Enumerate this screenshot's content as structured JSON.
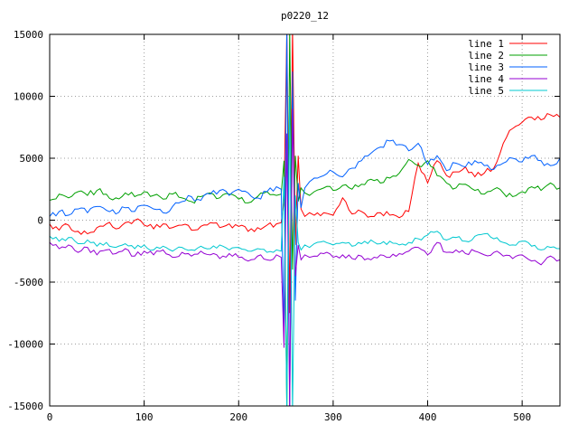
{
  "chart_data": {
    "type": "line",
    "title": "p0220_12",
    "xlabel": "",
    "ylabel": "",
    "xlim": [
      0,
      540
    ],
    "ylim": [
      -15000,
      15000
    ],
    "x_ticks": [
      0,
      100,
      200,
      300,
      400,
      500
    ],
    "y_ticks": [
      -15000,
      -10000,
      -5000,
      0,
      5000,
      10000,
      15000
    ],
    "grid": true,
    "legend_position": "top-right",
    "background_color": "#ffffff",
    "border_color": "#000000",
    "grid_color": "#9e9e9e",
    "x": [
      0,
      10,
      20,
      30,
      40,
      50,
      60,
      70,
      80,
      90,
      100,
      110,
      120,
      130,
      140,
      150,
      160,
      170,
      180,
      190,
      200,
      210,
      220,
      230,
      240,
      245,
      248,
      251,
      254,
      257,
      260,
      263,
      266,
      270,
      275,
      280,
      290,
      300,
      310,
      320,
      330,
      340,
      350,
      360,
      370,
      380,
      390,
      400,
      410,
      420,
      430,
      440,
      450,
      460,
      470,
      480,
      490,
      500,
      510,
      520,
      530,
      540
    ],
    "series": [
      {
        "name": "line 1",
        "color": "#ff0000",
        "noise": 260,
        "values": [
          -300,
          -800,
          -400,
          -900,
          -1100,
          -600,
          -300,
          -700,
          -200,
          0,
          -400,
          -700,
          -300,
          -600,
          -400,
          -800,
          -500,
          -200,
          -600,
          -300,
          -500,
          -900,
          -600,
          -400,
          -300,
          -200,
          1500,
          15500,
          -7500,
          15500,
          -2000,
          5200,
          900,
          300,
          600,
          400,
          600,
          400,
          1800,
          500,
          700,
          300,
          600,
          400,
          200,
          700,
          4600,
          3000,
          4800,
          3600,
          3900,
          4300,
          3500,
          3800,
          4200,
          6200,
          7400,
          7900,
          8300,
          8100,
          8500,
          8300
        ]
      },
      {
        "name": "line 2",
        "color": "#00a000",
        "noise": 260,
        "values": [
          1600,
          2100,
          1800,
          2300,
          2000,
          2400,
          2100,
          1800,
          2200,
          1900,
          2300,
          2000,
          1700,
          2100,
          1800,
          1500,
          1900,
          2200,
          1800,
          2100,
          1700,
          1400,
          1900,
          2300,
          2000,
          2100,
          4800,
          -15500,
          15500,
          -4000,
          5200,
          1500,
          2600,
          2200,
          2000,
          2300,
          2600,
          2400,
          2800,
          2500,
          2900,
          3300,
          3000,
          3400,
          3800,
          4900,
          4400,
          4800,
          3600,
          3000,
          2600,
          2900,
          2400,
          2100,
          2500,
          2200,
          1900,
          2300,
          2700,
          2400,
          3000,
          2600
        ]
      },
      {
        "name": "line 3",
        "color": "#0060ff",
        "noise": 260,
        "values": [
          300,
          700,
          400,
          900,
          600,
          1100,
          800,
          500,
          1000,
          700,
          1200,
          900,
          600,
          1100,
          1500,
          1900,
          1600,
          2100,
          2400,
          2000,
          2500,
          2200,
          1800,
          2300,
          2700,
          2500,
          -9000,
          15500,
          -15500,
          12000,
          -6500,
          3000,
          1000,
          2600,
          3100,
          3400,
          3600,
          3900,
          3500,
          4200,
          4800,
          5400,
          5900,
          6400,
          6100,
          5600,
          6200,
          4500,
          5200,
          4000,
          4600,
          4300,
          4800,
          4400,
          4100,
          4600,
          5000,
          4700,
          5200,
          4800,
          4400,
          5000
        ]
      },
      {
        "name": "line 4",
        "color": "#9400d3",
        "noise": 220,
        "values": [
          -1800,
          -2300,
          -2000,
          -2600,
          -2200,
          -2800,
          -2400,
          -2700,
          -2300,
          -2900,
          -2500,
          -2800,
          -2400,
          -3000,
          -2600,
          -2900,
          -2500,
          -2800,
          -3100,
          -2700,
          -3000,
          -3300,
          -2900,
          -3200,
          -2800,
          -3000,
          -10300,
          7000,
          -15500,
          9000,
          -4500,
          -2000,
          -3200,
          -2800,
          -3000,
          -2900,
          -2700,
          -3000,
          -2800,
          -3100,
          -2900,
          -3200,
          -2800,
          -3000,
          -2700,
          -2500,
          -2200,
          -2800,
          -1800,
          -2600,
          -2400,
          -2700,
          -2500,
          -2800,
          -2600,
          -2900,
          -3100,
          -2800,
          -3300,
          -3600,
          -2900,
          -3200
        ]
      },
      {
        "name": "line 5",
        "color": "#00c8d0",
        "noise": 200,
        "values": [
          -1300,
          -1700,
          -1400,
          -1900,
          -1600,
          -2100,
          -1800,
          -2200,
          -1900,
          -2300,
          -2000,
          -2400,
          -2100,
          -2500,
          -2200,
          -2400,
          -2100,
          -2300,
          -2000,
          -2400,
          -2200,
          -2500,
          -2300,
          -2600,
          -2400,
          -2500,
          3500,
          -15500,
          10000,
          -15500,
          2000,
          -1800,
          -2400,
          -2000,
          -2200,
          -1900,
          -1700,
          -2000,
          -1800,
          -2100,
          -1900,
          -1600,
          -1900,
          -1700,
          -2000,
          -1800,
          -1500,
          -1200,
          -900,
          -1600,
          -1400,
          -1700,
          -1300,
          -1100,
          -1500,
          -1800,
          -2000,
          -1700,
          -2100,
          -2400,
          -2200,
          -2300
        ]
      }
    ]
  }
}
